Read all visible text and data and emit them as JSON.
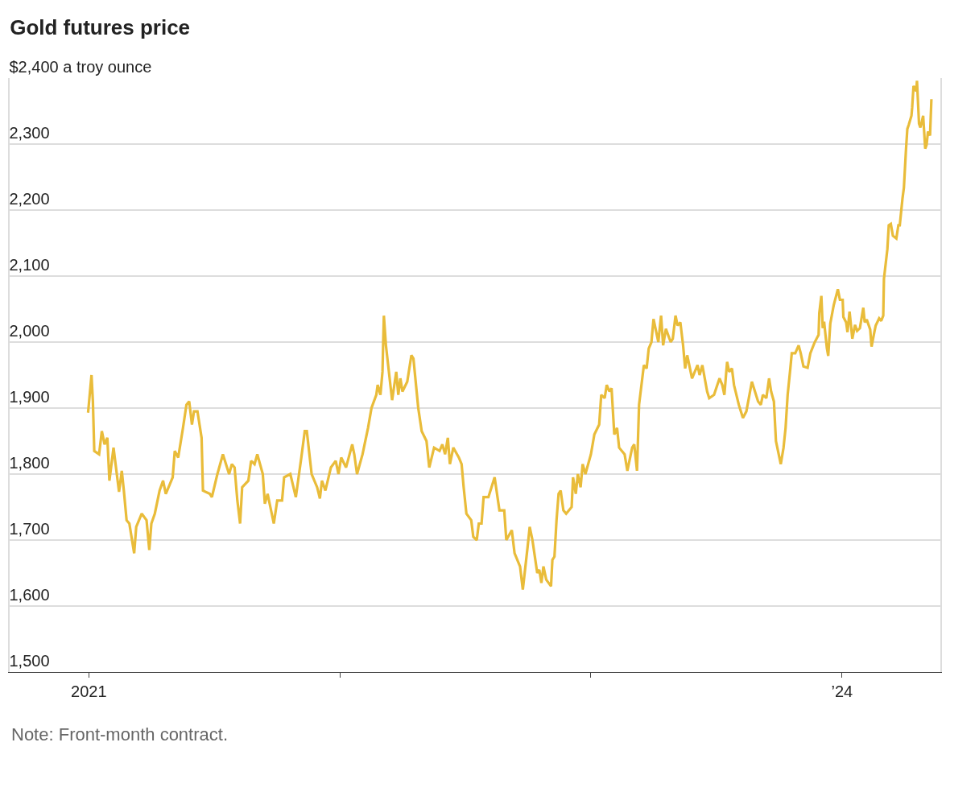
{
  "chart_data": {
    "type": "line",
    "title": "Gold futures price",
    "annotations": [
      "Note: Front-month contract."
    ],
    "x": [
      "2020-12-31",
      "2021-01-05",
      "2021-01-07",
      "2021-01-09",
      "2021-01-16",
      "2021-01-20",
      "2021-01-24",
      "2021-01-28",
      "2021-01-31",
      "2021-02-06",
      "2021-02-14",
      "2021-02-18",
      "2021-02-21",
      "2021-02-25",
      "2021-03-01",
      "2021-03-08",
      "2021-03-11",
      "2021-03-19",
      "2021-03-26",
      "2021-03-30",
      "2021-04-02",
      "2021-04-07",
      "2021-04-14",
      "2021-04-19",
      "2021-04-23",
      "2021-05-03",
      "2021-05-06",
      "2021-05-11",
      "2021-05-18",
      "2021-05-23",
      "2021-05-27",
      "2021-05-31",
      "2021-06-03",
      "2021-06-08",
      "2021-06-14",
      "2021-06-16",
      "2021-06-26",
      "2021-06-29",
      "2021-07-07",
      "2021-07-15",
      "2021-07-24",
      "2021-07-28",
      "2021-08-01",
      "2021-08-05",
      "2021-08-09",
      "2021-08-12",
      "2021-08-21",
      "2021-08-25",
      "2021-08-30",
      "2021-09-03",
      "2021-09-11",
      "2021-09-14",
      "2021-09-18",
      "2021-09-22",
      "2021-09-27",
      "2021-10-02",
      "2021-10-09",
      "2021-10-12",
      "2021-10-21",
      "2021-10-29",
      "2021-11-02",
      "2021-11-06",
      "2021-11-11",
      "2021-11-14",
      "2021-11-21",
      "2021-11-29",
      "2021-12-03",
      "2021-12-06",
      "2021-12-11",
      "2021-12-19",
      "2021-12-26",
      "2021-12-30",
      "2022-01-03",
      "2022-01-10",
      "2022-01-19",
      "2022-01-22",
      "2022-01-26",
      "2022-02-03",
      "2022-02-11",
      "2022-02-16",
      "2022-02-23",
      "2022-02-25",
      "2022-03-01",
      "2022-03-04",
      "2022-03-06",
      "2022-03-09",
      "2022-03-16",
      "2022-03-18",
      "2022-03-24",
      "2022-03-27",
      "2022-03-30",
      "2022-04-02",
      "2022-04-09",
      "2022-04-15",
      "2022-04-18",
      "2022-04-25",
      "2022-04-30",
      "2022-05-07",
      "2022-05-11",
      "2022-05-18",
      "2022-05-26",
      "2022-05-30",
      "2022-06-03",
      "2022-06-07",
      "2022-06-10",
      "2022-06-15",
      "2022-06-23",
      "2022-06-27",
      "2022-06-30",
      "2022-07-04",
      "2022-07-11",
      "2022-07-14",
      "2022-07-19",
      "2022-07-22",
      "2022-07-26",
      "2022-07-29",
      "2022-08-05",
      "2022-08-14",
      "2022-08-21",
      "2022-08-28",
      "2022-08-31",
      "2022-09-08",
      "2022-09-12",
      "2022-09-20",
      "2022-09-24",
      "2022-10-01",
      "2022-10-04",
      "2022-10-08",
      "2022-10-15",
      "2022-10-18",
      "2022-10-21",
      "2022-10-24",
      "2022-10-28",
      "2022-11-04",
      "2022-11-06",
      "2022-11-09",
      "2022-11-12",
      "2022-11-15",
      "2022-11-18",
      "2022-11-22",
      "2022-11-26",
      "2022-12-04",
      "2022-12-06",
      "2022-12-10",
      "2022-12-13",
      "2022-12-17",
      "2022-12-20",
      "2022-12-24",
      "2023-01-01",
      "2023-01-06",
      "2023-01-13",
      "2023-01-16",
      "2023-01-21",
      "2023-01-24",
      "2023-01-28",
      "2023-01-31",
      "2023-02-04",
      "2023-02-08",
      "2023-02-11",
      "2023-02-19",
      "2023-02-23",
      "2023-03-02",
      "2023-03-05",
      "2023-03-09",
      "2023-03-12",
      "2023-03-19",
      "2023-03-23",
      "2023-03-26",
      "2023-03-30",
      "2023-04-02",
      "2023-04-06",
      "2023-04-09",
      "2023-04-13",
      "2023-04-16",
      "2023-04-20",
      "2023-04-27",
      "2023-04-30",
      "2023-05-04",
      "2023-05-07",
      "2023-05-11",
      "2023-05-15",
      "2023-05-18",
      "2023-05-21",
      "2023-05-28",
      "2023-06-05",
      "2023-06-08",
      "2023-06-12",
      "2023-06-19",
      "2023-06-22",
      "2023-06-29",
      "2023-07-07",
      "2023-07-11",
      "2023-07-14",
      "2023-07-18",
      "2023-07-21",
      "2023-07-25",
      "2023-07-28",
      "2023-08-04",
      "2023-08-10",
      "2023-08-15",
      "2023-08-23",
      "2023-09-01",
      "2023-09-05",
      "2023-09-08",
      "2023-09-13",
      "2023-09-17",
      "2023-09-20",
      "2023-09-24",
      "2023-09-27",
      "2023-10-04",
      "2023-10-08",
      "2023-10-11",
      "2023-10-14",
      "2023-10-18",
      "2023-10-20",
      "2023-10-25",
      "2023-10-30",
      "2023-11-02",
      "2023-11-06",
      "2023-11-12",
      "2023-11-16",
      "2023-11-22",
      "2023-11-28",
      "2023-11-29",
      "2023-12-02",
      "2023-12-04",
      "2023-12-06",
      "2023-12-10",
      "2023-12-12",
      "2023-12-15",
      "2023-12-20",
      "2023-12-26",
      "2023-12-29",
      "2024-01-02",
      "2024-01-03",
      "2024-01-07",
      "2024-01-09",
      "2024-01-12",
      "2024-01-14",
      "2024-01-16",
      "2024-01-20",
      "2024-01-23",
      "2024-01-27",
      "2024-02-01",
      "2024-02-03",
      "2024-02-06",
      "2024-02-11",
      "2024-02-13",
      "2024-02-17",
      "2024-02-19",
      "2024-02-24",
      "2024-02-27",
      "2024-03-01",
      "2024-03-02",
      "2024-03-07",
      "2024-03-09",
      "2024-03-12",
      "2024-03-15",
      "2024-03-20",
      "2024-03-23",
      "2024-03-25",
      "2024-03-29",
      "2024-03-31",
      "2024-04-03",
      "2024-04-05",
      "2024-04-07",
      "2024-04-11",
      "2024-04-12",
      "2024-04-14",
      "2024-04-18",
      "2024-04-19",
      "2024-04-22",
      "2024-04-24",
      "2024-04-28",
      "2024-05-01",
      "2024-05-03",
      "2024-05-05",
      "2024-05-08",
      "2024-05-10"
    ],
    "series": [
      {
        "color": "#e9bc3a",
        "values": [
          1893,
          1950,
          1910,
          1835,
          1830,
          1865,
          1845,
          1855,
          1790,
          1840,
          1773,
          1805,
          1775,
          1730,
          1725,
          1680,
          1720,
          1740,
          1730,
          1685,
          1725,
          1740,
          1775,
          1790,
          1770,
          1795,
          1835,
          1825,
          1870,
          1905,
          1910,
          1875,
          1895,
          1895,
          1855,
          1775,
          1770,
          1765,
          1800,
          1830,
          1800,
          1815,
          1810,
          1760,
          1725,
          1780,
          1790,
          1820,
          1815,
          1830,
          1800,
          1755,
          1770,
          1750,
          1725,
          1760,
          1760,
          1795,
          1800,
          1765,
          1795,
          1825,
          1865,
          1865,
          1800,
          1780,
          1763,
          1790,
          1775,
          1810,
          1820,
          1800,
          1825,
          1810,
          1845,
          1830,
          1800,
          1830,
          1870,
          1900,
          1920,
          1935,
          1920,
          1955,
          2040,
          1995,
          1930,
          1912,
          1955,
          1920,
          1945,
          1925,
          1940,
          1980,
          1975,
          1900,
          1865,
          1850,
          1810,
          1840,
          1835,
          1845,
          1830,
          1855,
          1815,
          1840,
          1825,
          1815,
          1780,
          1740,
          1730,
          1705,
          1700,
          1725,
          1725,
          1765,
          1765,
          1795,
          1745,
          1745,
          1700,
          1715,
          1680,
          1660,
          1625,
          1690,
          1720,
          1700,
          1650,
          1655,
          1635,
          1660,
          1640,
          1630,
          1670,
          1675,
          1730,
          1770,
          1775,
          1745,
          1740,
          1750,
          1795,
          1770,
          1800,
          1780,
          1815,
          1800,
          1830,
          1860,
          1875,
          1920,
          1915,
          1935,
          1925,
          1930,
          1860,
          1870,
          1840,
          1830,
          1805,
          1840,
          1845,
          1805,
          1905,
          1965,
          1960,
          1990,
          2000,
          2035,
          2015,
          2000,
          2040,
          1995,
          2020,
          2000,
          2005,
          2040,
          2025,
          2030,
          1995,
          1960,
          1980,
          1945,
          1965,
          1950,
          1965,
          1925,
          1915,
          1920,
          1945,
          1935,
          1920,
          1970,
          1955,
          1960,
          1935,
          1905,
          1885,
          1895,
          1940,
          1910,
          1905,
          1920,
          1915,
          1945,
          1925,
          1910,
          1850,
          1815,
          1840,
          1870,
          1920,
          1961,
          1983,
          1983,
          1995,
          1983,
          1963,
          1961,
          1983,
          1999,
          2011,
          2044,
          2070,
          2021,
          2031,
          1991,
          1979,
          2028,
          2056,
          2080,
          2064,
          2064,
          2038,
          2030,
          2015,
          2046,
          2026,
          2005,
          2026,
          2017,
          2021,
          2052,
          2030,
          2034,
          2019,
          1993,
          2015,
          2025,
          2036,
          2032,
          2040,
          2096,
          2141,
          2177,
          2179,
          2161,
          2157,
          2177,
          2177,
          2218,
          2234,
          2291,
          2323,
          2329,
          2343,
          2355,
          2388,
          2380,
          2396,
          2331,
          2325,
          2343,
          2293,
          2299,
          2319,
          2313,
          2368
        ]
      }
    ],
    "xlim": [
      "2020-09-08",
      "2024-05-23"
    ],
    "xticks": [
      {
        "value": "2021-01-01",
        "label": "2021"
      },
      {
        "value": "2022-01-01",
        "label": null
      },
      {
        "value": "2023-01-01",
        "label": null
      },
      {
        "value": "2024-01-01",
        "label": "’24"
      }
    ],
    "ylim": [
      1500,
      2400
    ],
    "yticks": [
      {
        "value": 1500,
        "label": "1,500"
      },
      {
        "value": 1600,
        "label": "1,600"
      },
      {
        "value": 1700,
        "label": "1,700"
      },
      {
        "value": 1800,
        "label": "1,800"
      },
      {
        "value": 1900,
        "label": "1,900"
      },
      {
        "value": 2000,
        "label": "2,000"
      },
      {
        "value": 2100,
        "label": "2,100"
      },
      {
        "value": 2200,
        "label": "2,200"
      },
      {
        "value": 2300,
        "label": "2,300"
      },
      {
        "value": 2400,
        "label": "$2,400 a troy ounce"
      }
    ],
    "grid": "y"
  }
}
